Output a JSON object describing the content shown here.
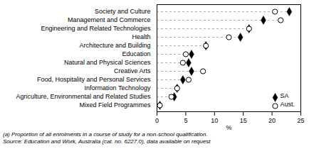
{
  "chart_data": {
    "type": "dot",
    "orientation": "horizontal",
    "categories": [
      "Society and Culture",
      "Management and Commerce",
      "Engineering and Related Technologies",
      "Health",
      "Architecture and Building",
      "Education",
      "Natural and Physical Sciences",
      "Creative Arts",
      "Food, Hospitality and Personal Services",
      "Information Technology",
      "Agriculture, Environmental and Related Studies",
      "Mixed Field Programmes"
    ],
    "series": [
      {
        "name": "SA",
        "color": "#000000",
        "marker": "diamond",
        "values": [
          23.0,
          18.5,
          16.0,
          14.5,
          8.5,
          6.0,
          5.5,
          6.0,
          4.5,
          3.5,
          3.0,
          0.5
        ]
      },
      {
        "name": "Aust.",
        "color": "#000000",
        "marker": "circle",
        "values": [
          20.5,
          21.5,
          16.0,
          12.5,
          8.5,
          5.0,
          4.5,
          8.0,
          5.5,
          3.5,
          2.5,
          0.5
        ]
      }
    ],
    "xlabel": "%",
    "xlim": [
      0,
      25
    ],
    "xticks": [
      0,
      5,
      10,
      15,
      20,
      25
    ],
    "grid": false,
    "legend": "lower right",
    "annotations": [
      "(a) Proportion of all enrolments in a course of study for a non-school qualification.",
      "Source: Education and Work, Australia (cat. no. 6227.0), data available on request"
    ]
  }
}
